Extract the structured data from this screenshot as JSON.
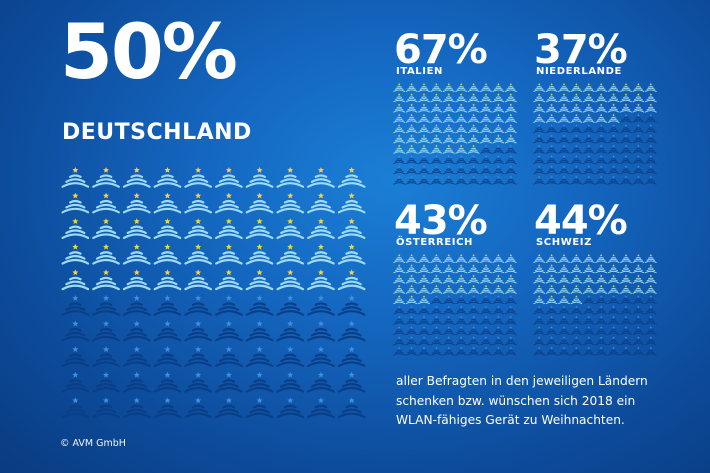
{
  "main": {
    "percent_label": "50%",
    "country": "DEUTSCHLAND",
    "percent": 50
  },
  "panels": [
    {
      "percent_label": "67%",
      "country": "ITALIEN",
      "percent": 67
    },
    {
      "percent_label": "37%",
      "country": "NIEDERLANDE",
      "percent": 37
    },
    {
      "percent_label": "43%",
      "country": "ÖSTERREICH",
      "percent": 43
    },
    {
      "percent_label": "44%",
      "country": "SCHWEIZ",
      "percent": 44
    }
  ],
  "caption": {
    "line1": "aller Befragten in den jeweiligen Ländern",
    "line2": "schenken bzw. wünschen sich 2018 ein",
    "line3": "WLAN-fähiges Gerät zu Weihnachten."
  },
  "copyright": "© AVM GmbH",
  "colors": {
    "active_wave": "#9fdcf4",
    "active_star": "#f5d33a",
    "inactive_wave": "#0a3f87",
    "inactive_star": "#3c8fe3",
    "background": "#1466bf"
  },
  "icon": "wifi-tree-icon"
}
